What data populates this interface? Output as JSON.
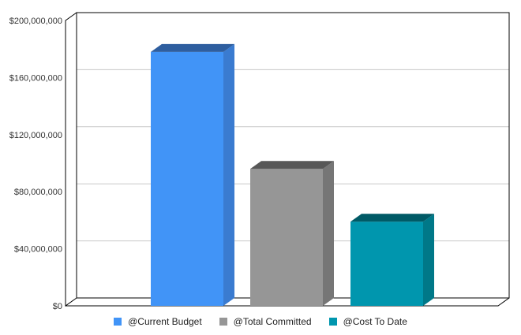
{
  "chart_data": {
    "type": "bar",
    "categories": [
      "@Current Budget",
      "@Total Committed",
      "@Cost To Date"
    ],
    "values": [
      178000000,
      96000000,
      59000000
    ],
    "ylim": [
      0,
      200000000
    ],
    "yticks": [
      0,
      40000000,
      80000000,
      120000000,
      160000000,
      200000000
    ],
    "ytick_labels": [
      "$0",
      "$40,000,000",
      "$80,000,000",
      "$120,000,000",
      "$160,000,000",
      "$200,000,000"
    ],
    "grid": true,
    "legend_position": "bottom",
    "colors": {
      "@Current Budget": {
        "front": "#4194F7",
        "side": "#3A7BD0",
        "top": "#2E5E9F"
      },
      "@Total Committed": {
        "front": "#969696",
        "side": "#767676",
        "top": "#575757"
      },
      "@Cost To Date": {
        "front": "#0096AE",
        "side": "#007888",
        "top": "#005A66"
      }
    }
  },
  "legend": {
    "items": [
      {
        "label": "@Current Budget",
        "color": "#4194F7"
      },
      {
        "label": "@Total Committed",
        "color": "#969696"
      },
      {
        "label": "@Cost To Date",
        "color": "#0096AE"
      }
    ]
  }
}
